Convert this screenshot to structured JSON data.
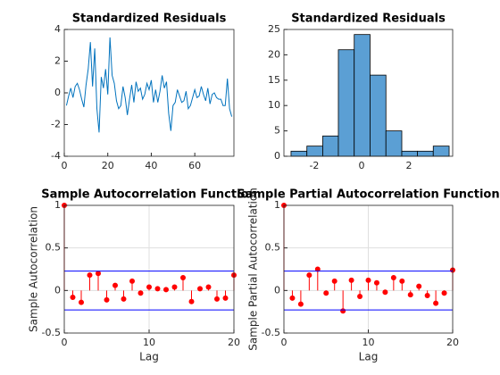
{
  "chart_data": [
    {
      "type": "line",
      "title": "Standardized Residuals",
      "color": "#0072bd",
      "x": [
        1,
        2,
        3,
        4,
        5,
        6,
        7,
        8,
        9,
        10,
        11,
        12,
        13,
        14,
        15,
        16,
        17,
        18,
        19,
        20,
        21,
        22,
        23,
        24,
        25,
        26,
        27,
        28,
        29,
        30,
        31,
        32,
        33,
        34,
        35,
        36,
        37,
        38,
        39,
        40,
        41,
        42,
        43,
        44,
        45,
        46,
        47,
        48,
        49,
        50,
        51,
        52,
        53,
        54,
        55,
        56,
        57,
        58,
        59,
        60,
        61,
        62,
        63,
        64,
        65,
        66,
        67,
        68,
        69,
        70,
        71,
        72,
        73,
        74,
        75,
        76,
        77
      ],
      "values": [
        -0.8,
        -0.2,
        0.3,
        -0.3,
        0.4,
        0.6,
        0.2,
        -0.4,
        -0.9,
        0.5,
        1.5,
        3.2,
        0.4,
        2.8,
        -1.0,
        -2.5,
        1.0,
        0.3,
        1.5,
        -0.1,
        3.5,
        1.1,
        0.6,
        -0.5,
        -1.0,
        -0.8,
        0.4,
        -0.3,
        -1.4,
        -0.4,
        0.5,
        -0.6,
        0.7,
        0.1,
        0.3,
        -0.4,
        -0.1,
        0.6,
        0.2,
        0.8,
        -0.6,
        0.2,
        -0.6,
        0.1,
        1.1,
        0.3,
        0.7,
        -1.3,
        -2.4,
        -0.8,
        -0.6,
        0.2,
        -0.2,
        -0.6,
        -0.5,
        0.1,
        -1.0,
        -0.8,
        -0.3,
        0.2,
        -0.3,
        -0.2,
        0.4,
        -0.1,
        -0.5,
        0.3,
        -0.7,
        -0.1,
        0.0,
        -0.3,
        -0.4,
        -0.4,
        -0.8,
        -0.8,
        0.9,
        -1.0,
        -1.5
      ],
      "xlim": [
        0,
        78
      ],
      "xticks": [
        0,
        20,
        40,
        60
      ],
      "ylim": [
        -4,
        4
      ],
      "yticks": [
        -4,
        -2,
        0,
        2,
        4
      ],
      "grid": false
    },
    {
      "type": "histogram",
      "title": "Standardized Residuals",
      "color": "#5b9fd4",
      "bins": [
        -2.98,
        -2.31,
        -1.64,
        -0.98,
        -0.31,
        0.36,
        1.03,
        1.7,
        2.36,
        3.03,
        3.7
      ],
      "values": [
        1,
        2,
        4,
        21,
        24,
        16,
        5,
        1,
        1,
        2
      ],
      "xlim": [
        -3.28,
        3.85
      ],
      "xticks": [
        -2,
        0,
        2
      ],
      "ylim": [
        0,
        25
      ],
      "yticks": [
        0,
        5,
        10,
        15,
        20,
        25
      ],
      "grid": false
    },
    {
      "type": "stem",
      "title": "Sample Autocorrelation Function",
      "xlabel": "Lag",
      "ylabel": "Sample Autocorrelation",
      "color": "#ff0000",
      "bounds_color": "#0000ff",
      "x": [
        0,
        1,
        2,
        3,
        4,
        5,
        6,
        7,
        8,
        9,
        10,
        11,
        12,
        13,
        14,
        15,
        16,
        17,
        18,
        19,
        20
      ],
      "values": [
        1,
        -0.08,
        -0.14,
        0.18,
        0.2,
        -0.11,
        0.06,
        -0.1,
        0.11,
        -0.03,
        0.04,
        0.02,
        0.01,
        0.04,
        0.15,
        -0.13,
        0.02,
        0.04,
        -0.1,
        -0.09,
        0.18
      ],
      "confidence_bounds": [
        0.228,
        -0.228
      ],
      "xlim": [
        0,
        20
      ],
      "xticks": [
        0,
        10,
        20
      ],
      "ylim": [
        -0.5,
        1
      ],
      "yticks": [
        -0.5,
        0,
        0.5,
        1
      ],
      "grid": true
    },
    {
      "type": "stem",
      "title": "Sample Partial Autocorrelation Function",
      "xlabel": "Lag",
      "ylabel": "Sample Partial Autocorrelation",
      "color": "#ff0000",
      "bounds_color": "#0000ff",
      "x": [
        0,
        1,
        2,
        3,
        4,
        5,
        6,
        7,
        8,
        9,
        10,
        11,
        12,
        13,
        14,
        15,
        16,
        17,
        18,
        19,
        20
      ],
      "values": [
        1,
        -0.09,
        -0.16,
        0.18,
        0.25,
        -0.03,
        0.11,
        -0.24,
        0.12,
        -0.07,
        0.12,
        0.09,
        -0.02,
        0.15,
        0.11,
        -0.05,
        0.05,
        -0.06,
        -0.15,
        -0.03,
        0.24
      ],
      "confidence_bounds": [
        0.228,
        -0.228
      ],
      "xlim": [
        0,
        20
      ],
      "xticks": [
        0,
        10,
        20
      ],
      "ylim": [
        -0.5,
        1
      ],
      "yticks": [
        -0.5,
        0,
        0.5,
        1
      ],
      "grid": true
    }
  ]
}
